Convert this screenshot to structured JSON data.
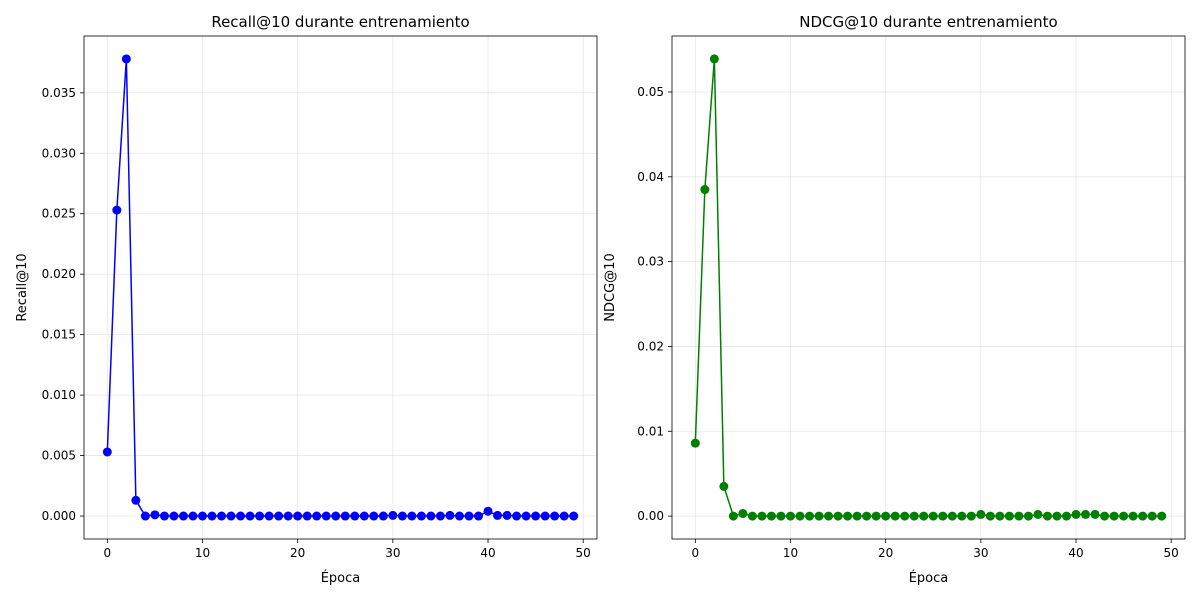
{
  "chart_data": [
    {
      "type": "line",
      "title": "Recall@10 durante entrenamiento",
      "xlabel": "Época",
      "ylabel": "Recall@10",
      "xlim": [
        -2.45,
        51.45
      ],
      "ylim": [
        -0.0019,
        0.0397
      ],
      "xticks": [
        0,
        10,
        20,
        30,
        40,
        50
      ],
      "xtick_labels": [
        "0",
        "10",
        "20",
        "30",
        "40",
        "50"
      ],
      "yticks": [
        0,
        0.005,
        0.01,
        0.015,
        0.02,
        0.025,
        0.03,
        0.035
      ],
      "ytick_labels": [
        "0.000",
        "0.005",
        "0.010",
        "0.015",
        "0.020",
        "0.025",
        "0.030",
        "0.035"
      ],
      "grid": true,
      "color": "#0000ff",
      "x": [
        0,
        1,
        2,
        3,
        4,
        5,
        6,
        7,
        8,
        9,
        10,
        11,
        12,
        13,
        14,
        15,
        16,
        17,
        18,
        19,
        20,
        21,
        22,
        23,
        24,
        25,
        26,
        27,
        28,
        29,
        30,
        31,
        32,
        33,
        34,
        35,
        36,
        37,
        38,
        39,
        40,
        41,
        42,
        43,
        44,
        45,
        46,
        47,
        48,
        49
      ],
      "values": [
        0.0053,
        0.0253,
        0.0378,
        0.0013,
        0.0,
        0.0001,
        0.0,
        0.0,
        0.0,
        0.0,
        0.0,
        0.0,
        0.0,
        0.0,
        0.0,
        0.0,
        0.0,
        0.0,
        0.0,
        0.0,
        0.0,
        0.0,
        0.0,
        0.0,
        0.0,
        0.0,
        0.0,
        0.0,
        0.0,
        0.0,
        5e-05,
        0.0,
        0.0,
        0.0,
        0.0,
        0.0,
        5e-05,
        0.0,
        0.0,
        0.0,
        0.0004,
        5e-05,
        5e-05,
        0.0,
        0.0,
        0.0,
        0.0,
        0.0,
        0.0,
        0.0
      ]
    },
    {
      "type": "line",
      "title": "NDCG@10 durante entrenamiento",
      "xlabel": "Época",
      "ylabel": "NDCG@10",
      "xlim": [
        -2.45,
        51.45
      ],
      "ylim": [
        -0.0027,
        0.0566
      ],
      "xticks": [
        0,
        10,
        20,
        30,
        40,
        50
      ],
      "xtick_labels": [
        "0",
        "10",
        "20",
        "30",
        "40",
        "50"
      ],
      "yticks": [
        0,
        0.01,
        0.02,
        0.03,
        0.04,
        0.05
      ],
      "ytick_labels": [
        "0.00",
        "0.01",
        "0.02",
        "0.03",
        "0.04",
        "0.05"
      ],
      "grid": true,
      "color": "#008000",
      "x": [
        0,
        1,
        2,
        3,
        4,
        5,
        6,
        7,
        8,
        9,
        10,
        11,
        12,
        13,
        14,
        15,
        16,
        17,
        18,
        19,
        20,
        21,
        22,
        23,
        24,
        25,
        26,
        27,
        28,
        29,
        30,
        31,
        32,
        33,
        34,
        35,
        36,
        37,
        38,
        39,
        40,
        41,
        42,
        43,
        44,
        45,
        46,
        47,
        48,
        49
      ],
      "values": [
        0.0086,
        0.0385,
        0.0539,
        0.0035,
        0.0,
        0.0003,
        0.0,
        0.0,
        0.0,
        0.0,
        0.0,
        0.0,
        0.0,
        0.0,
        0.0,
        0.0,
        0.0,
        0.0,
        0.0,
        0.0,
        0.0,
        0.0,
        0.0,
        0.0,
        0.0,
        0.0,
        0.0,
        0.0,
        0.0,
        0.0,
        0.0002,
        0.0,
        0.0,
        0.0,
        0.0,
        0.0,
        0.0002,
        0.0,
        0.0,
        0.0,
        0.0002,
        0.0002,
        0.0002,
        0.0,
        0.0,
        0.0,
        0.0,
        0.0,
        0.0,
        0.0
      ]
    }
  ]
}
